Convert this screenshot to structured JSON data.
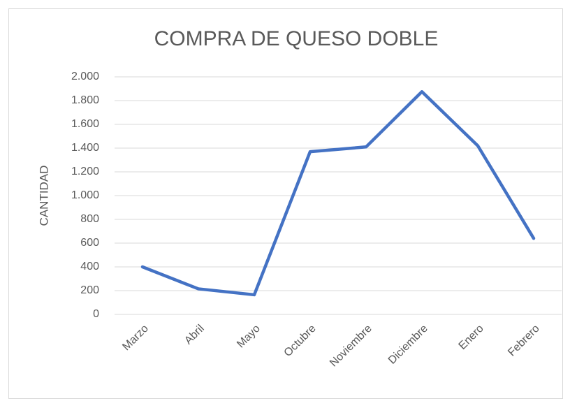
{
  "chart_data": {
    "type": "line",
    "title": "COMPRA DE QUESO DOBLE",
    "y_label": "CANTIDAD",
    "categories": [
      "Marzo",
      "Abril",
      "Mayo",
      "Octubre",
      "Noviembre",
      "Diciembre",
      "Enero",
      "Febrero"
    ],
    "values": [
      400,
      215,
      165,
      1370,
      1410,
      1875,
      1420,
      640
    ],
    "color": "#4472c4",
    "ylim": [
      0,
      2000
    ],
    "yticks": [
      0,
      200,
      400,
      600,
      800,
      {
        "value": 1000,
        "label": "1.000"
      },
      {
        "value": 1200,
        "label": "1.200"
      },
      {
        "value": 1400,
        "label": "1.400"
      },
      {
        "value": 1600,
        "label": "1.600"
      },
      {
        "value": 1800,
        "label": "1.800"
      },
      {
        "value": 2000,
        "label": "2.000"
      }
    ],
    "grid": true
  }
}
